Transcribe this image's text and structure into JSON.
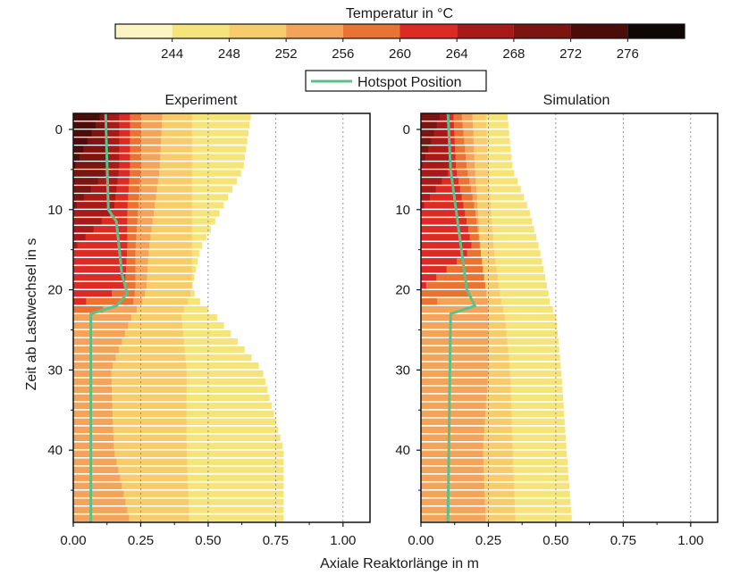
{
  "colorbar": {
    "title": "Temperatur  in °C",
    "ticks": [
      244,
      248,
      252,
      256,
      260,
      264,
      268,
      272,
      276
    ],
    "boundaries": [
      240,
      244,
      248,
      252,
      256,
      260,
      264,
      268,
      272,
      276,
      280
    ],
    "colors": [
      "#fdf4c4",
      "#f5e47a",
      "#f6cd6a",
      "#f3a35a",
      "#ea7334",
      "#dd2a26",
      "#a8191a",
      "#7a1512",
      "#4b0d0a",
      "#0f0606"
    ]
  },
  "legend": {
    "label": "Hotspot Position",
    "line_color": "#5cc08a"
  },
  "xlabel": "Axiale Reaktorlänge in m",
  "ylabel": "Zeit ab Lastwechsel in s",
  "chart_data": [
    {
      "type": "heatmap",
      "title": "Experiment",
      "xlim": [
        0.0,
        1.1
      ],
      "ylim": [
        49,
        -2
      ],
      "x_ticks": [
        "0.00",
        "0.25",
        "0.50",
        "0.75",
        "1.00"
      ],
      "y_ticks": [
        "0",
        "10",
        "20",
        "30",
        "40"
      ],
      "temperature_profile": {
        "time_s": [
          -2,
          5,
          10,
          15,
          20,
          22,
          23,
          30,
          40,
          49
        ],
        "level_extents_m": [
          [
            0.015,
            0.66,
            0.44,
            0.33,
            0.25,
            0.21,
            0.17,
            0.13,
            0.105
          ],
          [
            0.015,
            0.63,
            0.44,
            0.32,
            0.25,
            0.21,
            0.17,
            0.13,
            0.0
          ],
          [
            0.015,
            0.55,
            0.44,
            0.3,
            0.24,
            0.2,
            0.15,
            0.0,
            0.0
          ],
          [
            0.015,
            0.47,
            0.44,
            0.28,
            0.23,
            0.2,
            0.0,
            0.0,
            0.0
          ],
          [
            0.015,
            0.44,
            0.44,
            0.27,
            0.23,
            0.19,
            0.0,
            0.0,
            0.0
          ],
          [
            0.015,
            0.48,
            0.42,
            0.25,
            0.22,
            0.0,
            0.0,
            0.0,
            0.0
          ],
          [
            0.015,
            0.52,
            0.4,
            0.22,
            0.0,
            0.0,
            0.0,
            0.0,
            0.0
          ],
          [
            0.015,
            0.7,
            0.42,
            0.14,
            0.0,
            0.0,
            0.0,
            0.0,
            0.0
          ],
          [
            0.015,
            0.78,
            0.42,
            0.15,
            0.0,
            0.0,
            0.0,
            0.0,
            0.0
          ],
          [
            0.015,
            0.78,
            0.43,
            0.21,
            0.0,
            0.0,
            0.0,
            0.0,
            0.0
          ]
        ]
      },
      "hotspot": {
        "name": "Hotspot Position",
        "time_s": [
          -2,
          10,
          11.5,
          18,
          20.5,
          22,
          23,
          49
        ],
        "x_m": [
          0.12,
          0.13,
          0.16,
          0.18,
          0.2,
          0.16,
          0.065,
          0.065
        ]
      }
    },
    {
      "type": "heatmap",
      "title": "Simulation",
      "xlim": [
        0.0,
        1.1
      ],
      "ylim": [
        49,
        -2
      ],
      "x_ticks": [
        "0.00",
        "0.25",
        "0.50",
        "0.75",
        "1.00"
      ],
      "y_ticks": [
        "0",
        "10",
        "20",
        "30",
        "40"
      ],
      "temperature_profile": {
        "time_s": [
          -2,
          5,
          10,
          15,
          20,
          22,
          23,
          30,
          40,
          49
        ],
        "level_extents_m": [
          [
            0.015,
            0.32,
            0.24,
            0.19,
            0.15,
            0.12,
            0.1,
            0.075,
            0.0
          ],
          [
            0.015,
            0.34,
            0.25,
            0.2,
            0.17,
            0.13,
            0.11,
            0.0,
            0.0
          ],
          [
            0.015,
            0.4,
            0.26,
            0.21,
            0.2,
            0.16,
            0.0,
            0.0,
            0.0
          ],
          [
            0.015,
            0.44,
            0.27,
            0.22,
            0.22,
            0.19,
            0.0,
            0.0,
            0.0
          ],
          [
            0.015,
            0.47,
            0.29,
            0.24,
            0.24,
            0.0,
            0.0,
            0.0,
            0.0
          ],
          [
            0.015,
            0.48,
            0.3,
            0.25,
            0.0,
            0.0,
            0.0,
            0.0,
            0.0
          ],
          [
            0.015,
            0.5,
            0.31,
            0.25,
            0.0,
            0.0,
            0.0,
            0.0,
            0.0
          ],
          [
            0.015,
            0.52,
            0.33,
            0.25,
            0.0,
            0.0,
            0.0,
            0.0,
            0.0
          ],
          [
            0.015,
            0.54,
            0.34,
            0.23,
            0.0,
            0.0,
            0.0,
            0.0,
            0.0
          ],
          [
            0.015,
            0.56,
            0.35,
            0.24,
            0.0,
            0.0,
            0.0,
            0.0,
            0.0
          ]
        ]
      },
      "hotspot": {
        "name": "Hotspot Position",
        "time_s": [
          -2,
          5,
          10,
          15,
          20,
          22,
          23,
          49
        ],
        "x_m": [
          0.1,
          0.11,
          0.13,
          0.15,
          0.17,
          0.2,
          0.11,
          0.1
        ]
      }
    }
  ]
}
